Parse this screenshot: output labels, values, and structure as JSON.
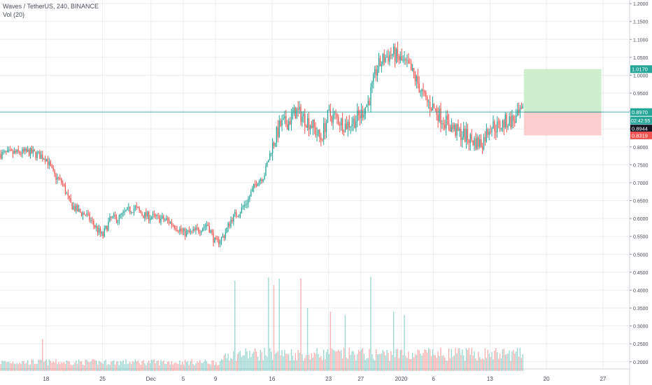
{
  "header": {
    "symbol_title": "Waves / TetherUS, 240, BINANCE",
    "volume_title": "Vol (20)"
  },
  "chart_data": {
    "type": "candlestick",
    "symbol": "Waves / TetherUS",
    "interval": "240",
    "exchange": "BINANCE",
    "ylim": [
      0.18,
      1.21
    ],
    "y_ticks": [
      "1.2000",
      "1.1500",
      "1.1000",
      "1.0500",
      "1.0000",
      "0.9500",
      "0.9000",
      "0.8500",
      "0.8000",
      "0.7500",
      "0.7000",
      "0.6500",
      "0.6000",
      "0.5500",
      "0.5000",
      "0.4500",
      "0.4000",
      "0.3500",
      "0.3000",
      "0.2500",
      "0.2000"
    ],
    "x_ticks": [
      {
        "label": "18",
        "day": 2
      },
      {
        "label": "25",
        "day": 9
      },
      {
        "label": "Dec",
        "day": 15
      },
      {
        "label": "5",
        "day": 19
      },
      {
        "label": "9",
        "day": 23
      },
      {
        "label": "16",
        "day": 30
      },
      {
        "label": "23",
        "day": 37
      },
      {
        "label": "27",
        "day": 41
      },
      {
        "label": "2020",
        "day": 46
      },
      {
        "label": "6",
        "day": 50
      },
      {
        "label": "13",
        "day": 57
      },
      {
        "label": "20",
        "day": 64
      },
      {
        "label": "27",
        "day": 71
      }
    ],
    "x_day_range": [
      -3.7,
      74.3
    ],
    "price_path": [
      [
        -3.7,
        0.78
      ],
      [
        0,
        0.785
      ],
      [
        2,
        0.77
      ],
      [
        3,
        0.72
      ],
      [
        4,
        0.7
      ],
      [
        5,
        0.64
      ],
      [
        6,
        0.62
      ],
      [
        7,
        0.61
      ],
      [
        8,
        0.58
      ],
      [
        9,
        0.55
      ],
      [
        10,
        0.6
      ],
      [
        11,
        0.6
      ],
      [
        12,
        0.62
      ],
      [
        13,
        0.63
      ],
      [
        14,
        0.61
      ],
      [
        15,
        0.605
      ],
      [
        16,
        0.6
      ],
      [
        17,
        0.595
      ],
      [
        18,
        0.58
      ],
      [
        19,
        0.56
      ],
      [
        20,
        0.56
      ],
      [
        21,
        0.57
      ],
      [
        22,
        0.585
      ],
      [
        23,
        0.53
      ],
      [
        24,
        0.55
      ],
      [
        25,
        0.6
      ],
      [
        26,
        0.62
      ],
      [
        27,
        0.65
      ],
      [
        28,
        0.7
      ],
      [
        29,
        0.72
      ],
      [
        30,
        0.8
      ],
      [
        31,
        0.86
      ],
      [
        32,
        0.87
      ],
      [
        33,
        0.9
      ],
      [
        34,
        0.88
      ],
      [
        35,
        0.86
      ],
      [
        36,
        0.82
      ],
      [
        37,
        0.89
      ],
      [
        38,
        0.88
      ],
      [
        39,
        0.86
      ],
      [
        40,
        0.87
      ],
      [
        41,
        0.89
      ],
      [
        42,
        0.93
      ],
      [
        43,
        1.02
      ],
      [
        44,
        1.05
      ],
      [
        45,
        1.06
      ],
      [
        46,
        1.04
      ],
      [
        47,
        1.02
      ],
      [
        48,
        0.98
      ],
      [
        49,
        0.93
      ],
      [
        50,
        0.91
      ],
      [
        51,
        0.88
      ],
      [
        52,
        0.86
      ],
      [
        53,
        0.84
      ],
      [
        54,
        0.83
      ],
      [
        55,
        0.815
      ],
      [
        56,
        0.81
      ],
      [
        57,
        0.86
      ],
      [
        58,
        0.855
      ],
      [
        59,
        0.87
      ],
      [
        60,
        0.875
      ],
      [
        61,
        0.894
      ]
    ],
    "volume_spikes": [
      [
        1.6,
        0.263
      ],
      [
        25.4,
        0.426
      ],
      [
        29.6,
        0.435
      ],
      [
        30.3,
        0.414
      ],
      [
        30.9,
        0.432
      ],
      [
        33.5,
        0.433
      ],
      [
        42.3,
        0.437
      ],
      [
        34.4,
        0.35
      ],
      [
        37.2,
        0.34
      ],
      [
        39.0,
        0.33
      ],
      [
        45.0,
        0.34
      ],
      [
        46.4,
        0.33
      ]
    ],
    "volume_range_display": [
      0.19,
      0.24
    ],
    "last_price": "0.8944",
    "countdown": "02:42:55",
    "long_position": {
      "entry": "0.8970",
      "target": "1.0170",
      "stop": "0.8319",
      "start_day": 61.2,
      "end_day": 70.8
    },
    "colors": {
      "up": "#26a69a",
      "down": "#ef5350",
      "entry_line": "#26a69a",
      "target_zone": "#c6ecc5",
      "stop_zone": "#fbc7c6",
      "grid": "#ebedf0",
      "axis_text": "#4a4e59"
    }
  }
}
